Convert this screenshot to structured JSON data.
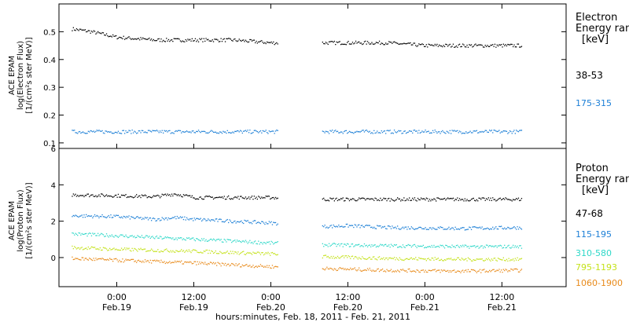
{
  "chart_data": [
    {
      "type": "scatter",
      "panel": "electron",
      "ylabel_lines": [
        "ACE EPAM",
        "log(Electron Flux)",
        "[1/(cm²s ster MeV)]"
      ],
      "ylim": [
        0.08,
        0.6
      ],
      "yticks": [
        0.1,
        0.2,
        0.3,
        0.4,
        0.5
      ],
      "ytick_labels": [
        "0.1",
        "0.2",
        "0.3",
        "0.4",
        "0.5"
      ],
      "legend_title_lines": [
        "Electron",
        "Energy ran",
        "[keV]"
      ],
      "data_gap": [
        "2011-02-20T01:00",
        "2011-02-20T08:00"
      ],
      "series": [
        {
          "name": "38-53",
          "color": "#000000",
          "x": [
            "2011-02-18T17:00",
            "2011-02-18T20:00",
            "2011-02-19T00:00",
            "2011-02-19T06:00",
            "2011-02-19T12:00",
            "2011-02-19T18:00",
            "2011-02-20T00:00",
            "2011-02-20T08:00",
            "2011-02-20T12:00",
            "2011-02-20T18:00",
            "2011-02-21T00:00",
            "2011-02-21T06:00",
            "2011-02-21T12:00",
            "2011-02-21T15:00"
          ],
          "y": [
            0.51,
            0.5,
            0.48,
            0.47,
            0.47,
            0.47,
            0.46,
            0.46,
            0.46,
            0.46,
            0.45,
            0.45,
            0.45,
            0.45
          ]
        },
        {
          "name": "175-315",
          "color": "#1c7fd6",
          "x": [
            "2011-02-18T17:00",
            "2011-02-19T00:00",
            "2011-02-19T12:00",
            "2011-02-20T00:00",
            "2011-02-20T08:00",
            "2011-02-20T12:00",
            "2011-02-21T00:00",
            "2011-02-21T12:00",
            "2011-02-21T15:00"
          ],
          "y": [
            0.14,
            0.14,
            0.14,
            0.14,
            0.14,
            0.14,
            0.14,
            0.14,
            0.14
          ]
        }
      ]
    },
    {
      "type": "scatter",
      "panel": "proton",
      "ylabel_lines": [
        "ACE EPAM",
        "log(Proton Flux)",
        "[1/(cm²s ster MeV)]"
      ],
      "ylim": [
        -1.6,
        6
      ],
      "yticks": [
        0,
        2,
        4,
        6
      ],
      "ytick_labels": [
        "0",
        "2",
        "4",
        "6"
      ],
      "legend_title_lines": [
        "Proton",
        "Energy ran",
        "[keV]"
      ],
      "data_gap": [
        "2011-02-20T01:00",
        "2011-02-20T08:00"
      ],
      "series": [
        {
          "name": "47-68",
          "color": "#000000",
          "x": [
            "2011-02-18T17:00",
            "2011-02-19T00:00",
            "2011-02-19T06:00",
            "2011-02-19T09:00",
            "2011-02-19T12:00",
            "2011-02-19T18:00",
            "2011-02-20T00:00",
            "2011-02-20T08:00",
            "2011-02-20T18:00",
            "2011-02-21T06:00",
            "2011-02-21T15:00"
          ],
          "y": [
            3.45,
            3.4,
            3.35,
            3.5,
            3.3,
            3.3,
            3.3,
            3.2,
            3.2,
            3.2,
            3.2
          ]
        },
        {
          "name": "115-195",
          "color": "#1c7fd6",
          "x": [
            "2011-02-18T17:00",
            "2011-02-19T00:00",
            "2011-02-19T06:00",
            "2011-02-19T09:00",
            "2011-02-19T12:00",
            "2011-02-19T18:00",
            "2011-02-20T00:00",
            "2011-02-20T08:00",
            "2011-02-20T12:00",
            "2011-02-20T18:00",
            "2011-02-21T06:00",
            "2011-02-21T15:00"
          ],
          "y": [
            2.3,
            2.25,
            2.1,
            2.2,
            2.1,
            2.0,
            1.9,
            1.7,
            1.75,
            1.65,
            1.6,
            1.65
          ]
        },
        {
          "name": "310-580",
          "color": "#2ed8c8",
          "x": [
            "2011-02-18T17:00",
            "2011-02-19T00:00",
            "2011-02-19T12:00",
            "2011-02-19T18:00",
            "2011-02-20T00:00",
            "2011-02-20T08:00",
            "2011-02-20T18:00",
            "2011-02-21T06:00",
            "2011-02-21T15:00"
          ],
          "y": [
            1.3,
            1.2,
            1.0,
            0.9,
            0.8,
            0.7,
            0.65,
            0.6,
            0.6
          ]
        },
        {
          "name": "795-1193",
          "color": "#c4e21a",
          "x": [
            "2011-02-18T17:00",
            "2011-02-19T00:00",
            "2011-02-19T12:00",
            "2011-02-20T00:00",
            "2011-02-20T08:00",
            "2011-02-20T18:00",
            "2011-02-21T06:00",
            "2011-02-21T15:00"
          ],
          "y": [
            0.55,
            0.45,
            0.35,
            0.2,
            0.05,
            -0.05,
            -0.1,
            -0.1
          ]
        },
        {
          "name": "1060-1900",
          "color": "#e88a1a",
          "x": [
            "2011-02-18T17:00",
            "2011-02-19T00:00",
            "2011-02-19T12:00",
            "2011-02-20T00:00",
            "2011-02-20T08:00",
            "2011-02-20T18:00",
            "2011-02-21T06:00",
            "2011-02-21T15:00"
          ],
          "y": [
            -0.05,
            -0.15,
            -0.3,
            -0.5,
            -0.6,
            -0.7,
            -0.75,
            -0.7
          ]
        }
      ]
    }
  ],
  "x_axis": {
    "range": [
      "2011-02-18T15:00",
      "2011-02-21T22:00"
    ],
    "ticks": [
      {
        "t": "2011-02-19T00:00",
        "label": "0:00",
        "sublabel": "Feb.19"
      },
      {
        "t": "2011-02-19T12:00",
        "label": "12:00",
        "sublabel": "Feb.19"
      },
      {
        "t": "2011-02-20T00:00",
        "label": "0:00",
        "sublabel": "Feb.20"
      },
      {
        "t": "2011-02-20T12:00",
        "label": "12:00",
        "sublabel": "Feb.20"
      },
      {
        "t": "2011-02-21T00:00",
        "label": "0:00",
        "sublabel": "Feb.21"
      },
      {
        "t": "2011-02-21T12:00",
        "label": "12:00",
        "sublabel": "Feb.21"
      }
    ],
    "xlabel": "hours:minutes, Feb. 18, 2011 - Feb. 21, 2011"
  }
}
